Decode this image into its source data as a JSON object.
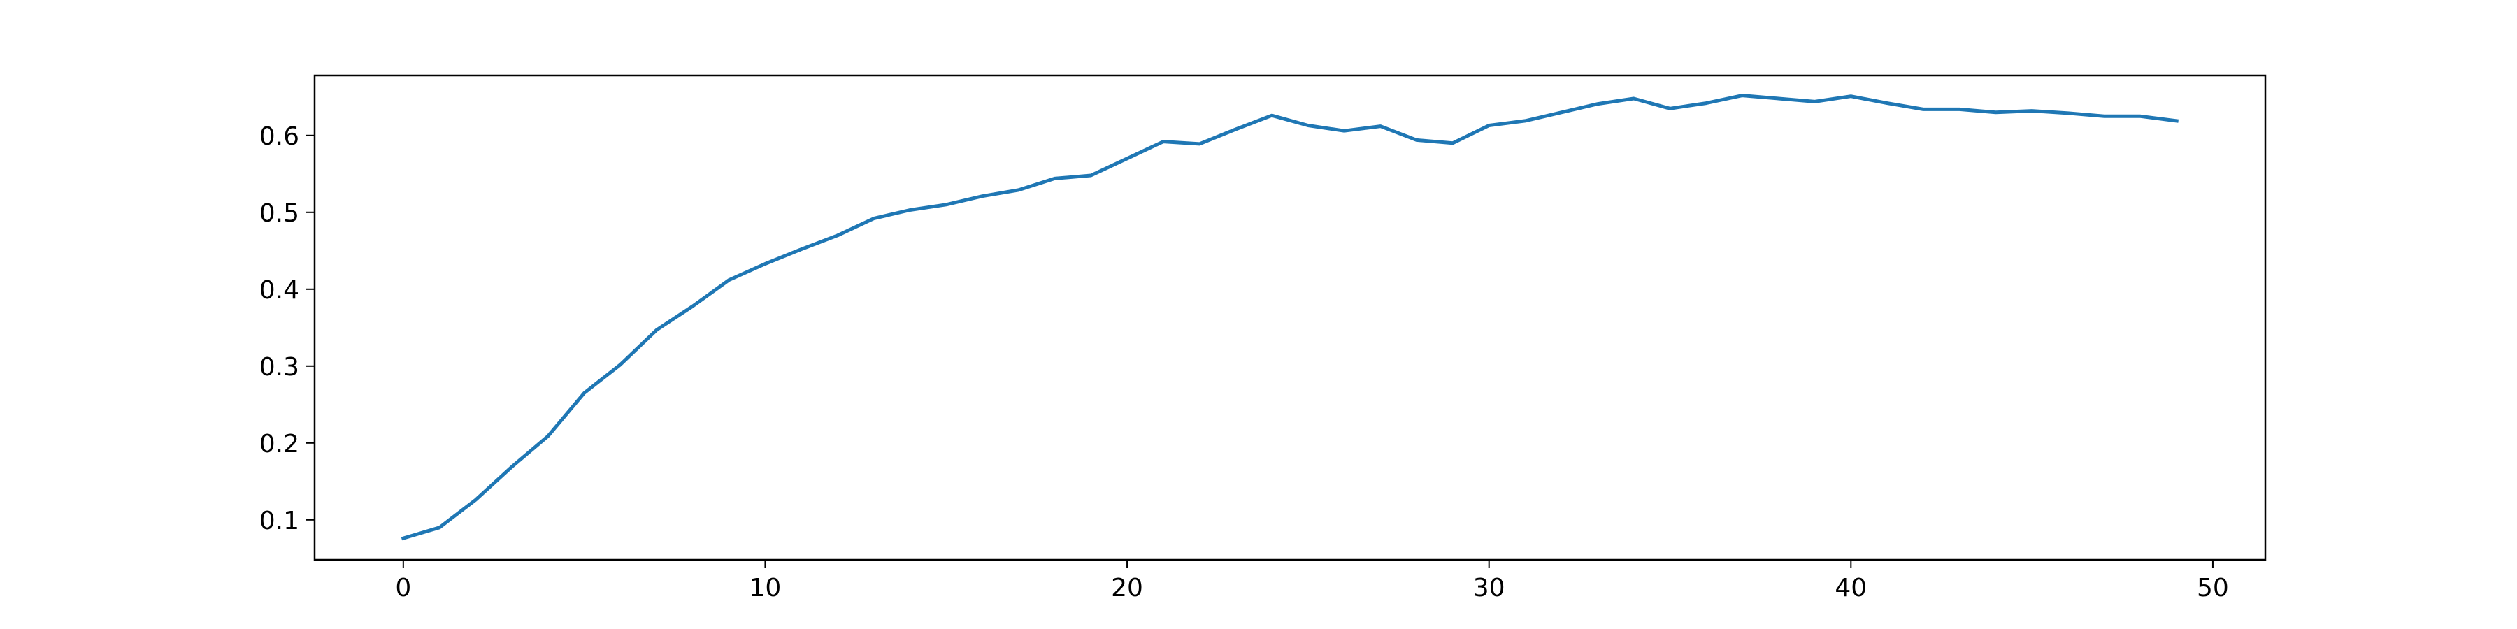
{
  "chart_data": {
    "type": "line",
    "title": "",
    "xlabel": "",
    "ylabel": "",
    "xlim": [
      -2.45,
      51.45
    ],
    "ylim": [
      0.048,
      0.678
    ],
    "grid": false,
    "legend": "none",
    "x_ticks": [
      0,
      10,
      20,
      30,
      40,
      50
    ],
    "x_tick_labels": [
      "0",
      "10",
      "20",
      "30",
      "40",
      "50"
    ],
    "y_ticks": [
      0.1,
      0.2,
      0.3,
      0.4,
      0.5,
      0.6
    ],
    "y_tick_labels": [
      "0.1",
      "0.2",
      "0.3",
      "0.4",
      "0.5",
      "0.6"
    ],
    "series": [
      {
        "color": "#1f77b4",
        "x": [
          0,
          1,
          2,
          3,
          4,
          5,
          6,
          7,
          8,
          9,
          10,
          11,
          12,
          13,
          14,
          15,
          16,
          17,
          18,
          19,
          20,
          21,
          22,
          23,
          24,
          25,
          26,
          27,
          28,
          29,
          30,
          31,
          32,
          33,
          34,
          35,
          36,
          37,
          38,
          39,
          40,
          41,
          42,
          43,
          44,
          45,
          46,
          47,
          48,
          49
        ],
        "values": [
          0.076,
          0.09,
          0.126,
          0.169,
          0.209,
          0.265,
          0.302,
          0.347,
          0.378,
          0.412,
          0.433,
          0.452,
          0.47,
          0.492,
          0.503,
          0.51,
          0.521,
          0.529,
          0.544,
          0.548,
          0.57,
          0.592,
          0.589,
          0.608,
          0.626,
          0.613,
          0.606,
          0.612,
          0.594,
          0.59,
          0.613,
          0.619,
          0.63,
          0.641,
          0.648,
          0.635,
          0.642,
          0.652,
          0.648,
          0.644,
          0.651,
          0.642,
          0.634,
          0.634,
          0.63,
          0.632,
          0.629,
          0.625,
          0.625,
          0.619
        ]
      }
    ]
  }
}
